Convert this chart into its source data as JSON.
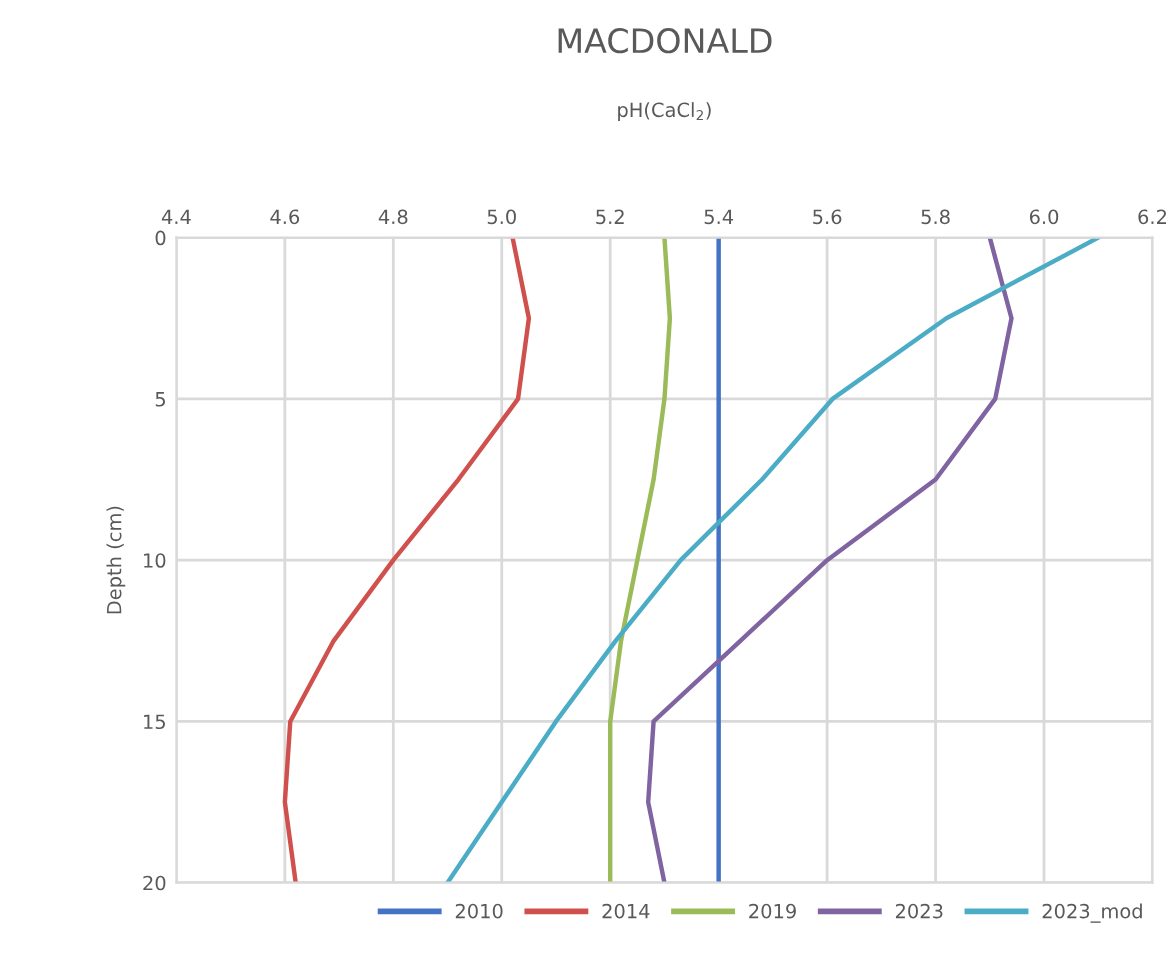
{
  "chart_data": {
    "type": "line",
    "title": "MACDONALD",
    "xlabel": "pH(CaCl$_{2}$)",
    "ylabel": "Depth (cm)",
    "xlim": [
      4.4,
      6.2
    ],
    "xticks": [
      {
        "value": 4.4,
        "label": "4.4"
      },
      {
        "value": 4.6,
        "label": "4.6"
      },
      {
        "value": 4.8,
        "label": "4.8"
      },
      {
        "value": 5.0,
        "label": "5.0"
      },
      {
        "value": 5.2,
        "label": "5.2"
      },
      {
        "value": 5.4,
        "label": "5.4"
      },
      {
        "value": 5.6,
        "label": "5.6"
      },
      {
        "value": 5.8,
        "label": "5.8"
      },
      {
        "value": 6.0,
        "label": "6.0"
      },
      {
        "value": 6.2,
        "label": "6.2"
      }
    ],
    "ylim": [
      20,
      0
    ],
    "yticks": [
      0,
      5,
      10,
      15,
      20
    ],
    "grid": true,
    "legend": "bottom",
    "marker": "none",
    "line_style": "solid",
    "series": [
      {
        "name": "2010",
        "color": "#4472c4",
        "x": [
          5.4,
          5.4,
          5.4,
          5.4,
          5.4
        ],
        "values": [
          0,
          5,
          10,
          15,
          20
        ]
      },
      {
        "name": "2014",
        "color": "#d0504d",
        "x": [
          5.02,
          5.05,
          5.03,
          4.92,
          4.8,
          4.69,
          4.61,
          4.6,
          4.62
        ],
        "values": [
          0,
          2.5,
          5,
          7.5,
          10,
          12.5,
          15,
          17.5,
          20
        ]
      },
      {
        "name": "2019",
        "color": "#9bbb59",
        "x": [
          5.3,
          5.31,
          5.3,
          5.28,
          5.25,
          5.22,
          5.2,
          5.2,
          5.2
        ],
        "values": [
          0,
          2.5,
          5,
          7.5,
          10,
          12.5,
          15,
          17.5,
          20
        ]
      },
      {
        "name": "2023",
        "color": "#8064a2",
        "x": [
          5.9,
          5.94,
          5.91,
          5.8,
          5.6,
          5.44,
          5.28,
          5.27,
          5.3
        ],
        "values": [
          0,
          2.5,
          5,
          7.5,
          10,
          12.5,
          15,
          17.5,
          20
        ]
      },
      {
        "name": "2023_mod",
        "color": "#4bacc6",
        "x": [
          6.1,
          5.82,
          5.61,
          5.48,
          5.33,
          5.21,
          5.1,
          5.0,
          4.9
        ],
        "values": [
          0,
          2.5,
          5,
          7.5,
          10,
          12.5,
          15,
          17.5,
          20
        ]
      }
    ]
  }
}
